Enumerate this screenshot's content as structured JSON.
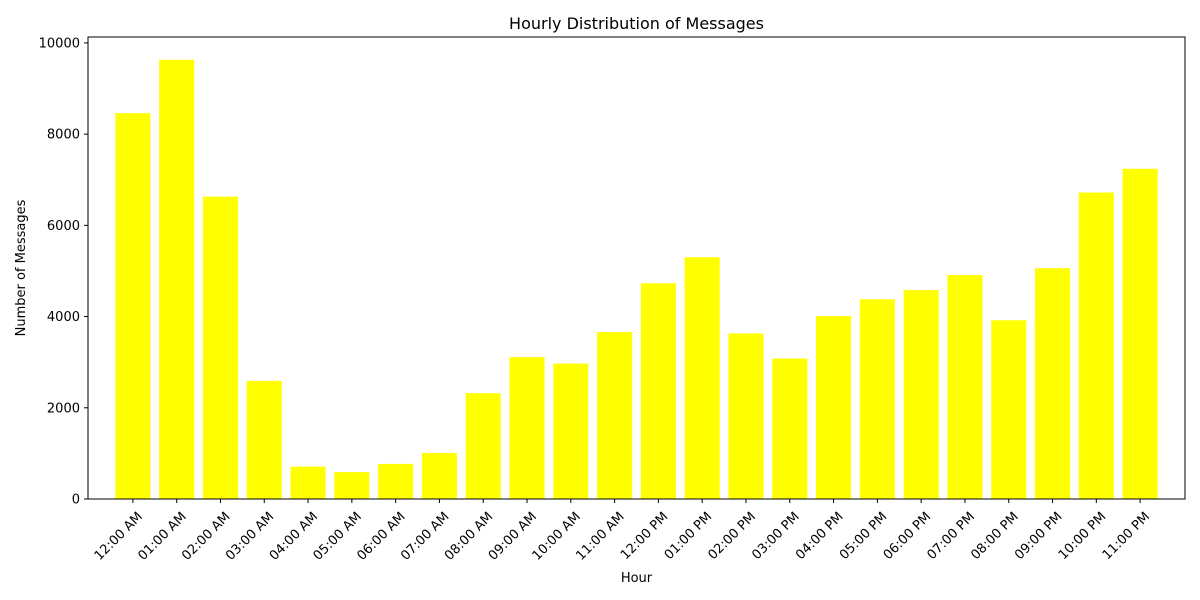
{
  "chart_data": {
    "type": "bar",
    "title": "Hourly Distribution of Messages",
    "xlabel": "Hour",
    "ylabel": "Number of Messages",
    "categories": [
      "12:00 AM",
      "01:00 AM",
      "02:00 AM",
      "03:00 AM",
      "04:00 AM",
      "05:00 AM",
      "06:00 AM",
      "07:00 AM",
      "08:00 AM",
      "09:00 AM",
      "10:00 AM",
      "11:00 AM",
      "12:00 PM",
      "01:00 PM",
      "02:00 PM",
      "03:00 PM",
      "04:00 PM",
      "05:00 PM",
      "06:00 PM",
      "07:00 PM",
      "08:00 PM",
      "09:00 PM",
      "10:00 PM",
      "11:00 PM"
    ],
    "values": [
      8460,
      9630,
      6630,
      2590,
      710,
      590,
      770,
      1010,
      2320,
      3110,
      2970,
      3660,
      4730,
      5300,
      3630,
      3080,
      4010,
      4380,
      4580,
      4910,
      3920,
      5060,
      6720,
      7240
    ],
    "ylim": [
      0,
      10000
    ],
    "yticks": [
      0,
      2000,
      4000,
      6000,
      8000,
      10000
    ],
    "grid": false,
    "bar_color": "#ffff00"
  }
}
